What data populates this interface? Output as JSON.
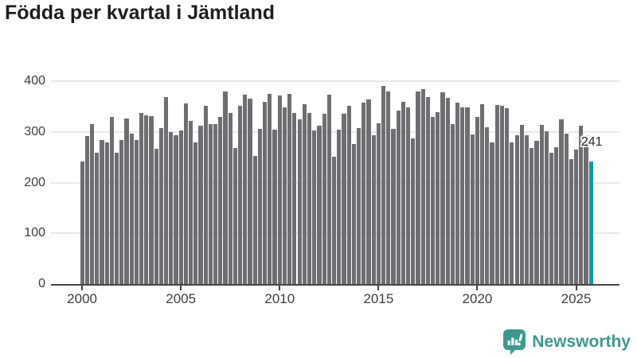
{
  "title": "Födda per kvartal i Jämtland",
  "colors": {
    "bar": "#6e6e72",
    "highlight": "#0d9aa0",
    "grid": "#e9e9e9",
    "axis": "#454545",
    "title_text": "#1d1d1d",
    "tick_text": "#3c3c3c",
    "brand": "#3d988e"
  },
  "chart_data": {
    "type": "bar",
    "title": "Födda per kvartal i Jämtland",
    "x_start": "2000-Q1",
    "x_end": "2025-Q4",
    "frequency": "quarterly",
    "ylim": [
      0,
      400
    ],
    "y_ticks": [
      0,
      100,
      200,
      300,
      400
    ],
    "x_ticks": [
      "2000",
      "2005",
      "2010",
      "2015",
      "2020",
      "2025"
    ],
    "grid": "horizontal",
    "legend": "none",
    "highlight_last": true,
    "last_value_label": "241",
    "values": [
      241,
      292,
      316,
      259,
      284,
      279,
      330,
      259,
      284,
      326,
      297,
      284,
      338,
      332,
      331,
      266,
      308,
      369,
      300,
      294,
      303,
      356,
      322,
      279,
      312,
      352,
      316,
      315,
      329,
      380,
      337,
      268,
      352,
      374,
      365,
      253,
      306,
      359,
      375,
      305,
      371,
      348,
      375,
      338,
      325,
      355,
      337,
      302,
      312,
      336,
      374,
      251,
      304,
      335,
      352,
      276,
      307,
      358,
      364,
      293,
      317,
      390,
      379,
      306,
      342,
      359,
      348,
      287,
      379,
      384,
      369,
      329,
      339,
      378,
      367,
      315,
      357,
      349,
      349,
      295,
      330,
      354,
      309,
      280,
      353,
      351,
      346,
      279,
      294,
      314,
      293,
      269,
      282,
      313,
      301,
      259,
      270,
      325,
      296,
      247,
      265,
      312,
      293,
      241
    ]
  },
  "annotation": {
    "last_value": "241"
  },
  "footer": {
    "brand": "Newsworthy",
    "logo_icon": "bar-chart-speech-bubble-icon"
  }
}
